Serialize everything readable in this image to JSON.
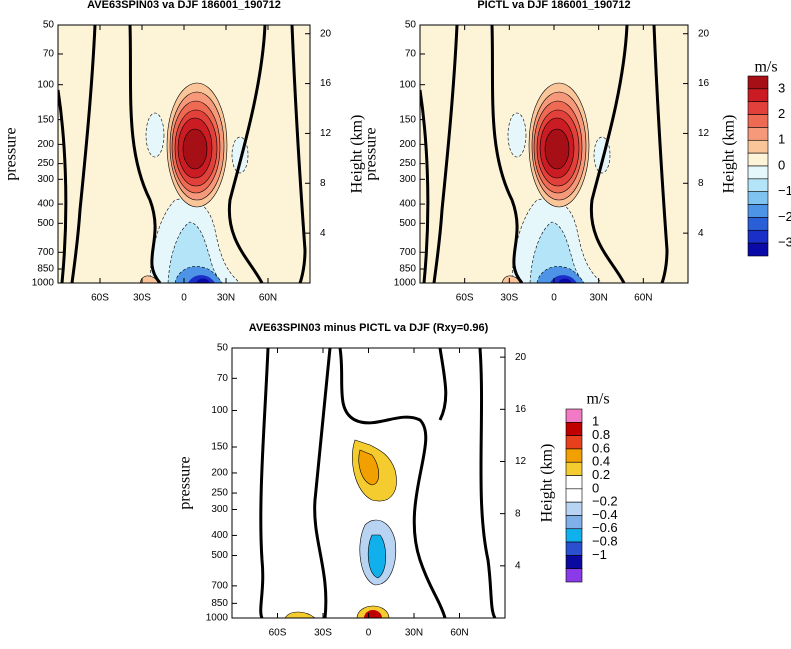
{
  "chart_data": [
    {
      "type": "contour",
      "title": "AVE63SPIN03 va DJF 186001_190712",
      "ylabel": "pressure",
      "y2label": "Height (km)",
      "xlim": [
        -90,
        90
      ],
      "xticks": [
        {
          "value": -60,
          "label": "60S"
        },
        {
          "value": -30,
          "label": "30S"
        },
        0,
        {
          "value": 30,
          "label": "30N"
        },
        {
          "value": 60,
          "label": "60N"
        }
      ],
      "ylim": [
        1000,
        50
      ],
      "y_scale": "log",
      "yticks": [
        50,
        70,
        100,
        150,
        200,
        250,
        300,
        400,
        500,
        700,
        850,
        1000
      ],
      "y2lim": [
        0,
        20.7
      ],
      "y2ticks": [
        4,
        8,
        12,
        16,
        20
      ],
      "colorbar": {
        "label": "m/s",
        "levels": [
          3,
          2.5,
          2,
          1.5,
          1,
          0.5,
          0,
          -0.5,
          -1,
          -1.5,
          -2,
          -2.5,
          -3
        ],
        "colors": [
          "#a50f15",
          "#cb1c24",
          "#e2403a",
          "#ef6a52",
          "#f6987a",
          "#fbc59a",
          "#fdf3d6",
          "#e6f7fc",
          "#b4e4f8",
          "#7fc4f0",
          "#4d94e6",
          "#2b5fd8",
          "#1a2ec8",
          "#0a0aa8"
        ],
        "ticks": [
          3,
          2,
          1,
          0,
          {
            "value": -1,
            "label": "−1"
          },
          {
            "value": -2,
            "label": "−2"
          },
          {
            "value": -3,
            "label": "−3"
          }
        ]
      }
    },
    {
      "type": "contour",
      "title": "PICTL va DJF 186001_190712",
      "ylabel": "pressure",
      "y2label": "Height (km)",
      "xlim": [
        -90,
        90
      ],
      "xticks": [
        {
          "value": -60,
          "label": "60S"
        },
        {
          "value": -30,
          "label": "30S"
        },
        0,
        {
          "value": 30,
          "label": "30N"
        },
        {
          "value": 60,
          "label": "60N"
        }
      ],
      "ylim": [
        1000,
        50
      ],
      "y_scale": "log",
      "yticks": [
        50,
        70,
        100,
        150,
        200,
        250,
        300,
        400,
        500,
        700,
        850,
        1000
      ],
      "y2lim": [
        0,
        20.7
      ],
      "y2ticks": [
        4,
        8,
        12,
        16,
        20
      ]
    },
    {
      "type": "contour",
      "title": "AVE63SPIN03 minus PICTL va DJF (Rxy=0.96)",
      "ylabel": "pressure",
      "y2label": "Height (km)",
      "xlim": [
        -90,
        90
      ],
      "xticks": [
        {
          "value": -60,
          "label": "60S"
        },
        {
          "value": -30,
          "label": "30S"
        },
        0,
        {
          "value": 30,
          "label": "30N"
        },
        {
          "value": 60,
          "label": "60N"
        }
      ],
      "ylim": [
        1000,
        50
      ],
      "y_scale": "log",
      "yticks": [
        50,
        70,
        100,
        150,
        200,
        250,
        300,
        400,
        500,
        700,
        850,
        1000
      ],
      "y2lim": [
        0,
        20.7
      ],
      "y2ticks": [
        4,
        8,
        12,
        16,
        20
      ],
      "colorbar": {
        "label": "m/s",
        "levels": [
          1,
          0.8,
          0.6,
          0.4,
          0.2,
          0,
          -0.2,
          -0.4,
          -0.6,
          -0.8,
          -1
        ],
        "colors": [
          "#f27ac4",
          "#c00000",
          "#e8401c",
          "#f2a000",
          "#f5cc30",
          "#ffffff",
          "#ffffff",
          "#b8d4f2",
          "#7fb0ea",
          "#10b0ec",
          "#2a50d0",
          "#0a0aa0",
          "#8a3ae6"
        ],
        "ticks": [
          1,
          0.8,
          0.6,
          0.4,
          0.2,
          0,
          {
            "value": -0.2,
            "label": "−0.2"
          },
          {
            "value": -0.4,
            "label": "−0.4"
          },
          {
            "value": -0.6,
            "label": "−0.6"
          },
          {
            "value": -0.8,
            "label": "−0.8"
          },
          {
            "value": -1,
            "label": "−1"
          }
        ]
      }
    }
  ]
}
